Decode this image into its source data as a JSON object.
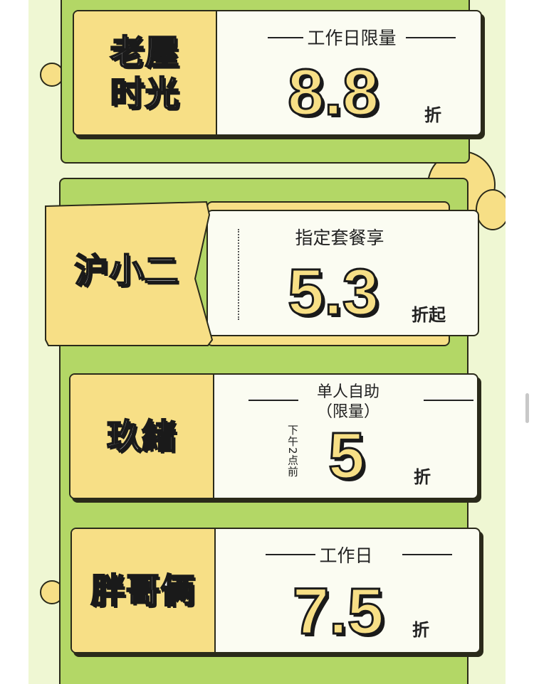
{
  "colors": {
    "background": "#eff7d3",
    "panel_green": "#b3d766",
    "accent_yellow": "#f7df86",
    "card": "#fbfcf2",
    "outline": "#2a2a1a"
  },
  "cards": [
    {
      "name": "老屋时光",
      "name_lines": [
        "老屋",
        "时光"
      ],
      "subtitle": "工作日限量",
      "discount": "8.8",
      "unit": "折"
    },
    {
      "name": "沪小二",
      "subtitle": "指定套餐享",
      "discount": "5.3",
      "unit": "折起"
    },
    {
      "name": "玖緒",
      "subtitle": "单人自助",
      "subtitle2": "（限量）",
      "note": "下午2点前",
      "discount": "5",
      "unit": "折"
    },
    {
      "name": "胖哥俩",
      "subtitle": "工作日",
      "discount": "7.5",
      "unit": "折"
    }
  ]
}
